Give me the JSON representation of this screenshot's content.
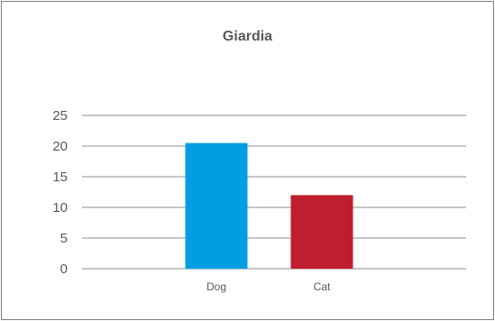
{
  "chart_data": {
    "type": "bar",
    "title": "Giardia",
    "categories": [
      "Dog",
      "Cat"
    ],
    "values": [
      20.5,
      12
    ],
    "colors": [
      "#009fe3",
      "#be1e2d"
    ],
    "yticks": [
      0,
      5,
      10,
      15,
      20,
      25
    ],
    "ylim": [
      0,
      25
    ],
    "grid": true,
    "xlabel": "",
    "ylabel": ""
  }
}
